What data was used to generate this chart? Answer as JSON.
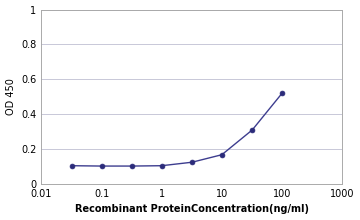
{
  "x_values": [
    0.032,
    0.1,
    0.32,
    1.0,
    3.2,
    10.0,
    32.0,
    100.0
  ],
  "y_values": [
    0.105,
    0.103,
    0.103,
    0.105,
    0.125,
    0.168,
    0.31,
    0.52
  ],
  "line_color": "#3d3d8f",
  "marker_color": "#2b2b7a",
  "marker_style": "o",
  "marker_size": 3.5,
  "line_width": 1.0,
  "xlabel": "Recombinant ProteinConcentration(ng/ml)",
  "ylabel": "OD 450",
  "xlim": [
    0.01,
    1000
  ],
  "ylim": [
    0,
    1.0
  ],
  "yticks": [
    0,
    0.2,
    0.4,
    0.6,
    0.8,
    1.0
  ],
  "xticks": [
    0.01,
    0.1,
    1,
    10,
    100,
    1000
  ],
  "xtick_labels": [
    "0.01",
    "0.1",
    "1",
    "10",
    "100",
    "1000"
  ],
  "background_color": "#ffffff",
  "plot_background": "#ffffff",
  "grid_color": "#c8c8d8",
  "xlabel_fontsize": 7,
  "ylabel_fontsize": 7,
  "tick_fontsize": 7,
  "xlabel_fontweight": "bold",
  "spine_color": "#aaaaaa"
}
